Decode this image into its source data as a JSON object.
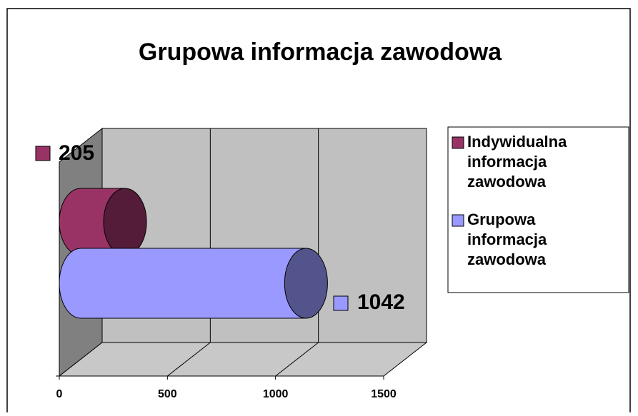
{
  "chart_data": {
    "type": "bar",
    "title": "Grupowa informacja zawodowa",
    "categories": [
      null
    ],
    "series": [
      {
        "name": "Indywidualna informacja zawodowa",
        "color": "#993366",
        "values": [
          205
        ]
      },
      {
        "name": "Grupowa informacja zawodowa",
        "color": "#9999ff",
        "values": [
          1042
        ]
      }
    ],
    "xlim": [
      0,
      1500
    ],
    "xticks": [
      0,
      500,
      1000,
      1500
    ],
    "grid": true,
    "legend": "right"
  }
}
